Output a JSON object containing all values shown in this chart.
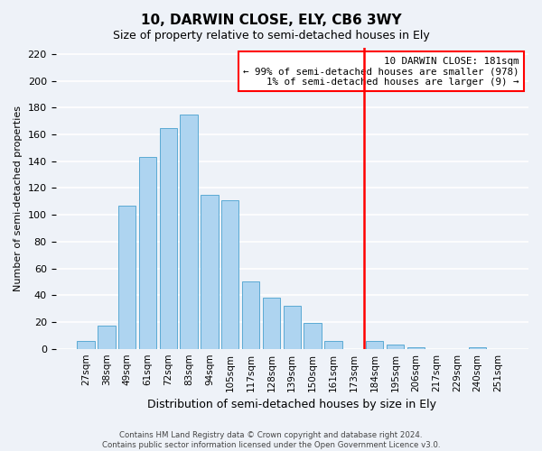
{
  "title": "10, DARWIN CLOSE, ELY, CB6 3WY",
  "subtitle": "Size of property relative to semi-detached houses in Ely",
  "xlabel": "Distribution of semi-detached houses by size in Ely",
  "ylabel": "Number of semi-detached properties",
  "categories": [
    "27sqm",
    "38sqm",
    "49sqm",
    "61sqm",
    "72sqm",
    "83sqm",
    "94sqm",
    "105sqm",
    "117sqm",
    "128sqm",
    "139sqm",
    "150sqm",
    "161sqm",
    "173sqm",
    "184sqm",
    "195sqm",
    "206sqm",
    "217sqm",
    "229sqm",
    "240sqm",
    "251sqm"
  ],
  "values": [
    6,
    17,
    107,
    143,
    165,
    175,
    115,
    111,
    50,
    38,
    32,
    19,
    6,
    0,
    6,
    3,
    1,
    0,
    0,
    1,
    0
  ],
  "bar_color": "#aed4f0",
  "bar_edge_color": "#5baad4",
  "vline_x": 13.5,
  "vline_color": "red",
  "annotation_title": "10 DARWIN CLOSE: 181sqm",
  "annotation_line1": "← 99% of semi-detached houses are smaller (978)",
  "annotation_line2": "1% of semi-detached houses are larger (9) →",
  "annotation_box_color": "white",
  "annotation_box_edge": "red",
  "ylim": [
    0,
    225
  ],
  "yticks": [
    0,
    20,
    40,
    60,
    80,
    100,
    120,
    140,
    160,
    180,
    200,
    220
  ],
  "footer_line1": "Contains HM Land Registry data © Crown copyright and database right 2024.",
  "footer_line2": "Contains public sector information licensed under the Open Government Licence v3.0.",
  "background_color": "#eef2f8",
  "grid_color": "white"
}
